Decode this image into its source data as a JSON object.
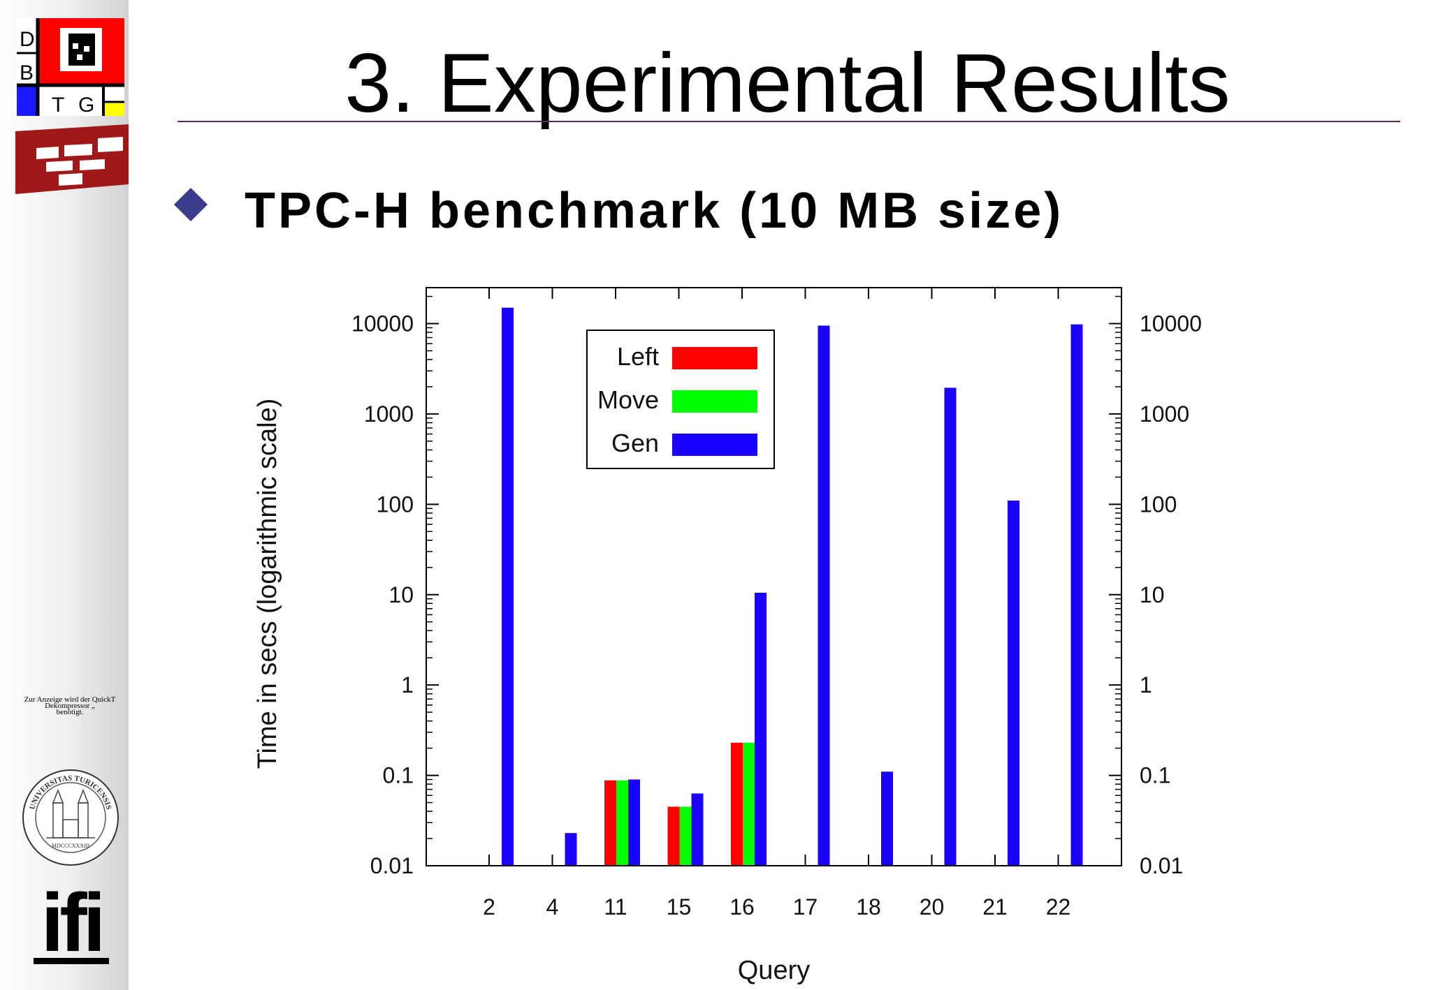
{
  "slide": {
    "title": "3. Experimental Results",
    "bullet": "TPC-H benchmark (10 MB size)"
  },
  "sidebar": {
    "logo_letters": [
      "D",
      "B",
      "T",
      "G"
    ],
    "quicktime_note": "Zur Anzeige wird der QuickT\nDekompressor „\nbenötigt.",
    "seal_text": "UNIVERSITAS TURICENSIS",
    "seal_year": "MDCCCXXXIII",
    "ifi_logo": "ifi"
  },
  "chart_data": {
    "type": "bar",
    "xlabel": "Query",
    "ylabel": "Time in secs (logarithmic scale)",
    "y_scale": "log",
    "ylim": [
      0.01,
      25000
    ],
    "y_ticks": [
      "0.01",
      "0.1",
      "1",
      "10",
      "100",
      "1000",
      "10000"
    ],
    "y_tick_values": [
      0.01,
      0.1,
      1,
      10,
      100,
      1000,
      10000
    ],
    "categories": [
      "2",
      "4",
      "11",
      "15",
      "16",
      "17",
      "18",
      "20",
      "21",
      "22"
    ],
    "legend_position": "top-center",
    "series": [
      {
        "name": "Left",
        "color": "#ff0000",
        "values": [
          null,
          null,
          0.088,
          0.045,
          0.23,
          null,
          null,
          null,
          null,
          null
        ]
      },
      {
        "name": "Move",
        "color": "#00ff00",
        "values": [
          null,
          null,
          0.088,
          0.045,
          0.23,
          null,
          null,
          null,
          null,
          null
        ]
      },
      {
        "name": "Gen",
        "color": "#1a00ff",
        "values": [
          15000,
          0.023,
          0.09,
          0.063,
          10.5,
          9500,
          0.11,
          1950,
          110,
          9800
        ]
      }
    ],
    "grid": false
  }
}
